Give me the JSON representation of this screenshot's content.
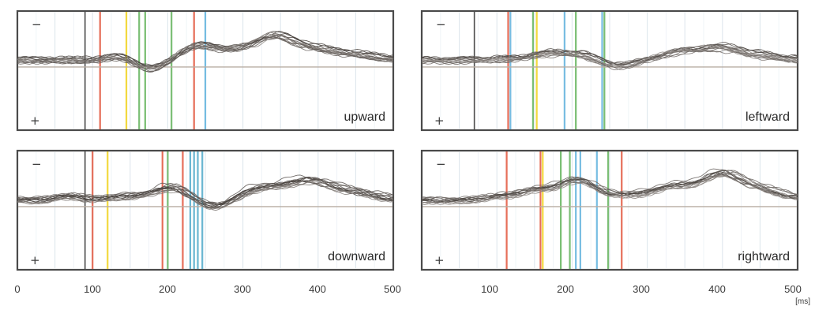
{
  "chart_data": [
    {
      "type": "line",
      "title": "upward",
      "xlim": [
        0,
        500
      ],
      "x_ticks": [
        0,
        100,
        200,
        300,
        400,
        500
      ],
      "polarity_labels": [
        "−",
        "+"
      ],
      "onset_line": 90,
      "markers": [
        {
          "x": 110,
          "color": "#e2553c"
        },
        {
          "x": 145,
          "color": "#f0d21c"
        },
        {
          "x": 162,
          "color": "#63b35c"
        },
        {
          "x": 170,
          "color": "#63b35c"
        },
        {
          "x": 205,
          "color": "#63b35c"
        },
        {
          "x": 235,
          "color": "#e2553c"
        },
        {
          "x": 250,
          "color": "#5fb1dd"
        }
      ],
      "trace_peak_ms": [
        140,
        175,
        240,
        285,
        340,
        395,
        450
      ],
      "trace_peak_amp": [
        0.2,
        -0.4,
        0.6,
        0.3,
        1.0,
        0.4,
        0.2
      ]
    },
    {
      "type": "line",
      "title": "leftward",
      "xlim": [
        0,
        500
      ],
      "x_ticks": [
        0,
        100,
        200,
        300,
        400,
        500
      ],
      "polarity_labels": [
        "−",
        "+"
      ],
      "onset_line": 70,
      "markers": [
        {
          "x": 115,
          "color": "#e2553c"
        },
        {
          "x": 118,
          "color": "#5fb1dd"
        },
        {
          "x": 148,
          "color": "#63b35c"
        },
        {
          "x": 153,
          "color": "#f0d21c"
        },
        {
          "x": 190,
          "color": "#5fb1dd"
        },
        {
          "x": 205,
          "color": "#63b35c"
        },
        {
          "x": 240,
          "color": "#5fb1dd"
        },
        {
          "x": 243,
          "color": "#63b35c"
        }
      ],
      "trace_peak_ms": [
        100,
        160,
        205,
        260,
        340,
        395,
        450
      ],
      "trace_peak_amp": [
        0.1,
        0.5,
        0.6,
        -0.5,
        0.6,
        1.0,
        0.3
      ]
    },
    {
      "type": "line",
      "title": "downward",
      "xlim": [
        0,
        500
      ],
      "x_ticks": [
        0,
        100,
        200,
        300,
        400,
        500
      ],
      "polarity_labels": [
        "−",
        "+"
      ],
      "onset_line": 90,
      "markers": [
        {
          "x": 100,
          "color": "#e2553c"
        },
        {
          "x": 120,
          "color": "#f0d21c"
        },
        {
          "x": 193,
          "color": "#e2553c"
        },
        {
          "x": 200,
          "color": "#63b35c"
        },
        {
          "x": 220,
          "color": "#e2553c"
        },
        {
          "x": 230,
          "color": "#4fa9c9"
        },
        {
          "x": 235,
          "color": "#4fa9c9"
        },
        {
          "x": 240,
          "color": "#4fa9c9"
        },
        {
          "x": 246,
          "color": "#4fa9c9"
        }
      ],
      "trace_peak_ms": [
        70,
        145,
        205,
        265,
        320,
        385,
        445
      ],
      "trace_peak_amp": [
        0.2,
        0.2,
        0.7,
        -0.4,
        0.6,
        1.0,
        0.4
      ]
    },
    {
      "type": "line",
      "title": "rightward",
      "xlim": [
        0,
        500
      ],
      "x_ticks": [
        100,
        200,
        300,
        400,
        500
      ],
      "x_unit": "[ms]",
      "polarity_labels": [
        "−",
        "+"
      ],
      "onset_line": null,
      "markers": [
        {
          "x": 113,
          "color": "#e2553c"
        },
        {
          "x": 158,
          "color": "#e2553c"
        },
        {
          "x": 161,
          "color": "#f0d21c"
        },
        {
          "x": 185,
          "color": "#63b35c"
        },
        {
          "x": 197,
          "color": "#63b35c"
        },
        {
          "x": 205,
          "color": "#5fb1dd"
        },
        {
          "x": 211,
          "color": "#5fb1dd"
        },
        {
          "x": 233,
          "color": "#5fb1dd"
        },
        {
          "x": 248,
          "color": "#63b35c"
        },
        {
          "x": 266,
          "color": "#e2553c"
        }
      ],
      "trace_peak_ms": [
        100,
        150,
        205,
        260,
        330,
        400,
        460
      ],
      "trace_peak_amp": [
        0.15,
        0.4,
        0.8,
        0.2,
        0.5,
        1.0,
        0.3
      ]
    }
  ]
}
